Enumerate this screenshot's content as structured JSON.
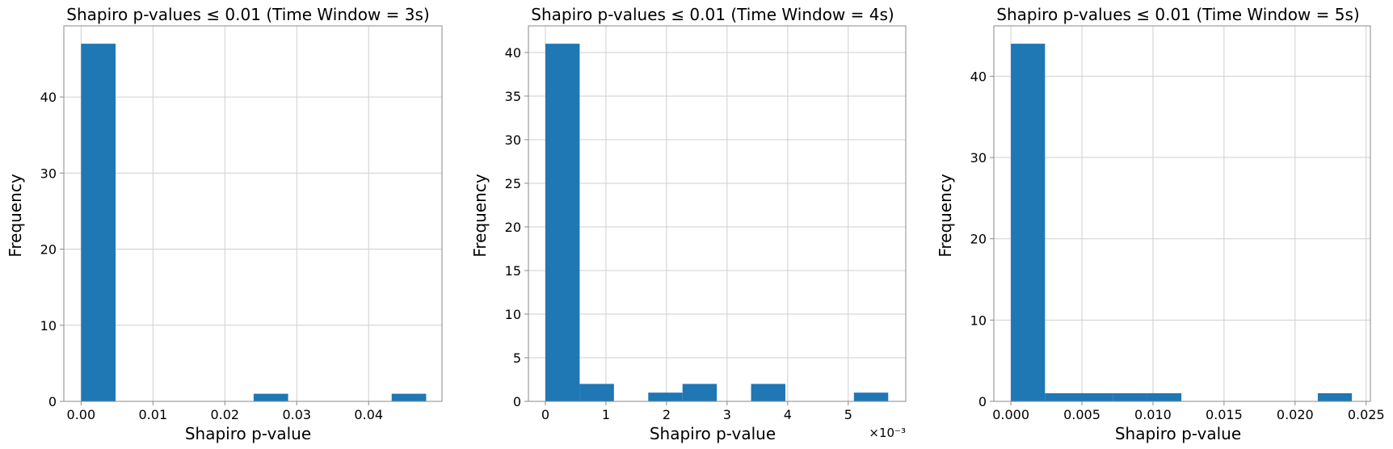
{
  "chart_data": [
    {
      "type": "bar",
      "title": "Shapiro p-values ≤ 0.01 (Time Window = 3s)",
      "xlabel": "Shapiro p-value",
      "ylabel": "Frequency",
      "xlim": [
        -0.0024,
        0.0502
      ],
      "ylim": [
        0,
        49.35
      ],
      "xticks": [
        0.0,
        0.01,
        0.02,
        0.03,
        0.04
      ],
      "xtick_labels": [
        "0.00",
        "0.01",
        "0.02",
        "0.03",
        "0.04"
      ],
      "yticks": [
        0,
        10,
        20,
        30,
        40
      ],
      "ytick_labels": [
        "0",
        "10",
        "20",
        "30",
        "40"
      ],
      "x_offset_label": "",
      "grid": true,
      "bins": [
        {
          "x0": 0.0,
          "x1": 0.0048,
          "count": 47
        },
        {
          "x0": 0.0048,
          "x1": 0.0096,
          "count": 0
        },
        {
          "x0": 0.0096,
          "x1": 0.0144,
          "count": 0
        },
        {
          "x0": 0.0144,
          "x1": 0.0192,
          "count": 0
        },
        {
          "x0": 0.0192,
          "x1": 0.024,
          "count": 0
        },
        {
          "x0": 0.024,
          "x1": 0.0288,
          "count": 1
        },
        {
          "x0": 0.0288,
          "x1": 0.0336,
          "count": 0
        },
        {
          "x0": 0.0336,
          "x1": 0.0384,
          "count": 0
        },
        {
          "x0": 0.0384,
          "x1": 0.0432,
          "count": 0
        },
        {
          "x0": 0.0432,
          "x1": 0.048,
          "count": 1
        }
      ]
    },
    {
      "type": "bar",
      "title": "Shapiro p-values ≤ 0.01 (Time Window = 4s)",
      "xlabel": "Shapiro p-value",
      "ylabel": "Frequency",
      "xlim": [
        -0.28,
        5.95
      ],
      "ylim": [
        0,
        43.05
      ],
      "xticks": [
        0,
        1,
        2,
        3,
        4,
        5
      ],
      "xtick_labels": [
        "0",
        "1",
        "2",
        "3",
        "4",
        "5"
      ],
      "yticks": [
        0,
        5,
        10,
        15,
        20,
        25,
        30,
        35,
        40
      ],
      "ytick_labels": [
        "0",
        "5",
        "10",
        "15",
        "20",
        "25",
        "30",
        "35",
        "40"
      ],
      "x_offset_label": "×10⁻³",
      "grid": true,
      "bins": [
        {
          "x0": 0.0,
          "x1": 0.566,
          "count": 41
        },
        {
          "x0": 0.566,
          "x1": 1.132,
          "count": 2
        },
        {
          "x0": 1.132,
          "x1": 1.698,
          "count": 0
        },
        {
          "x0": 1.698,
          "x1": 2.264,
          "count": 1
        },
        {
          "x0": 2.264,
          "x1": 2.83,
          "count": 2
        },
        {
          "x0": 2.83,
          "x1": 3.396,
          "count": 0
        },
        {
          "x0": 3.396,
          "x1": 3.962,
          "count": 2
        },
        {
          "x0": 3.962,
          "x1": 4.528,
          "count": 0
        },
        {
          "x0": 4.528,
          "x1": 5.094,
          "count": 0
        },
        {
          "x0": 5.094,
          "x1": 5.66,
          "count": 1
        }
      ]
    },
    {
      "type": "bar",
      "title": "Shapiro p-values ≤ 0.01 (Time Window = 5s)",
      "xlabel": "Shapiro p-value",
      "ylabel": "Frequency",
      "xlim": [
        -0.0012,
        0.0253
      ],
      "ylim": [
        0,
        46.2
      ],
      "xticks": [
        0.0,
        0.005,
        0.01,
        0.015,
        0.02,
        0.025
      ],
      "xtick_labels": [
        "0.000",
        "0.005",
        "0.010",
        "0.015",
        "0.020",
        "0.025"
      ],
      "yticks": [
        0,
        10,
        20,
        30,
        40
      ],
      "ytick_labels": [
        "0",
        "10",
        "20",
        "30",
        "40"
      ],
      "x_offset_label": "",
      "grid": true,
      "bins": [
        {
          "x0": 0.0,
          "x1": 0.0024,
          "count": 44
        },
        {
          "x0": 0.0024,
          "x1": 0.0048,
          "count": 1
        },
        {
          "x0": 0.0048,
          "x1": 0.0072,
          "count": 1
        },
        {
          "x0": 0.0072,
          "x1": 0.0096,
          "count": 1
        },
        {
          "x0": 0.0096,
          "x1": 0.012,
          "count": 1
        },
        {
          "x0": 0.012,
          "x1": 0.0144,
          "count": 0
        },
        {
          "x0": 0.0144,
          "x1": 0.0168,
          "count": 0
        },
        {
          "x0": 0.0168,
          "x1": 0.0192,
          "count": 0
        },
        {
          "x0": 0.0192,
          "x1": 0.0216,
          "count": 0
        },
        {
          "x0": 0.0216,
          "x1": 0.024,
          "count": 1
        }
      ]
    }
  ]
}
